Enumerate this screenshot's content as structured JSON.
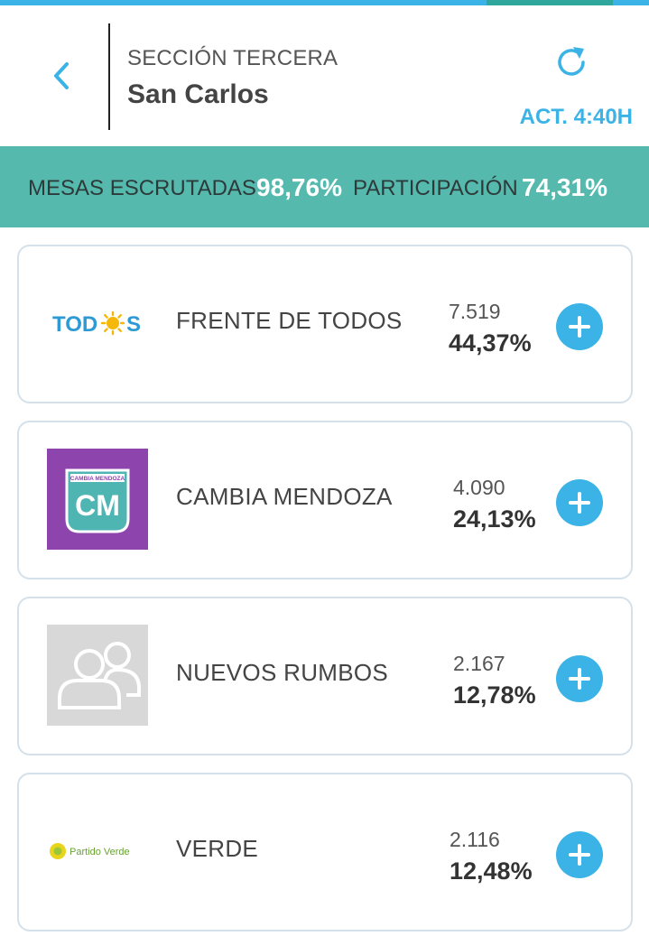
{
  "header": {
    "section": "SECCIÓN TERCERA",
    "place": "San Carlos",
    "updated": "ACT. 4:40H"
  },
  "stats": {
    "mesas_label": "MESAS ESCRUTADAS",
    "mesas_value": "98,76%",
    "participacion_label": "PARTICIPACIÓN",
    "participacion_value": "74,31%"
  },
  "parties": [
    {
      "name": "FRENTE DE TODOS",
      "votes": "7.519",
      "percent": "44,37%",
      "logo_text": "TODOS"
    },
    {
      "name": "CAMBIA MENDOZA",
      "votes": "4.090",
      "percent": "24,13%",
      "logo_text": "CM",
      "logo_subtext": "CAMBIA MENDOZA",
      "logo_color": "#8e44ad"
    },
    {
      "name": "NUEVOS RUMBOS",
      "votes": "2.167",
      "percent": "12,78%"
    },
    {
      "name": "VERDE",
      "votes": "2.116",
      "percent": "12,48%",
      "logo_text": "Partido Verde"
    }
  ],
  "colors": {
    "accent": "#3bb3e6",
    "stats_bg": "#55b9ad",
    "card_border": "#d5e1ea"
  },
  "icons": {
    "back": "chevron-left-icon",
    "refresh": "refresh-icon",
    "expand": "plus-icon"
  }
}
